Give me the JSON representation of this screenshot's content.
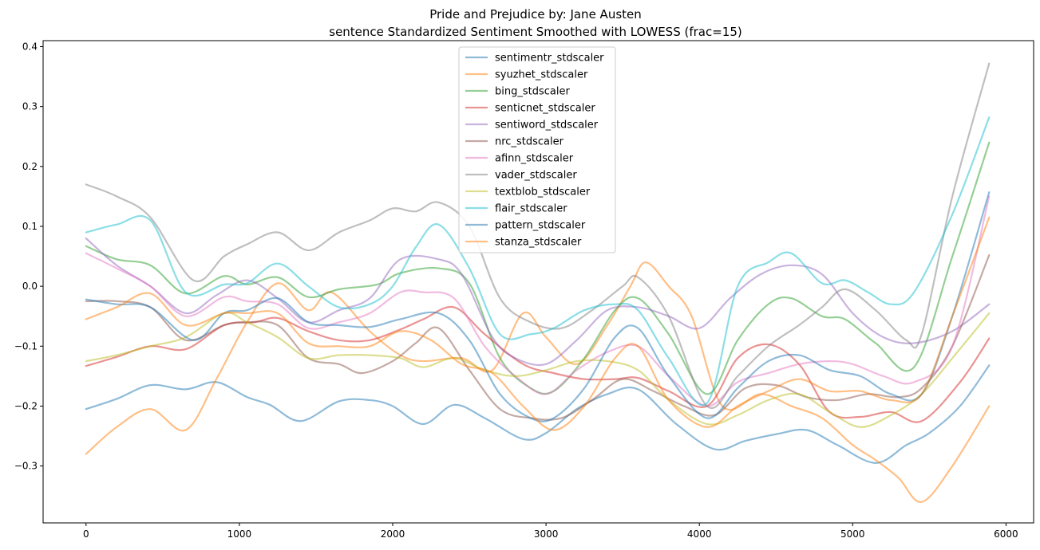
{
  "chart_data": {
    "type": "line",
    "title": "Pride and Prejudice by: Jane Austen",
    "subtitle": "sentence Standardized Sentiment Smoothed with LOWESS (frac=15)",
    "xlabel": "",
    "ylabel": "",
    "xlim": [
      -280,
      6180
    ],
    "ylim": [
      -0.395,
      0.41
    ],
    "xticks": [
      0,
      1000,
      2000,
      3000,
      4000,
      5000,
      6000
    ],
    "yticks": [
      -0.3,
      -0.2,
      -0.1,
      0.0,
      0.1,
      0.2,
      0.3,
      0.4
    ],
    "ytick_labels": [
      "−0.3",
      "−0.2",
      "−0.1",
      "0.0",
      "0.1",
      "0.2",
      "0.3",
      "0.4"
    ],
    "xtick_labels": [
      "0",
      "1000",
      "2000",
      "3000",
      "4000",
      "5000",
      "6000"
    ],
    "grid": false,
    "legend_position": "top-center",
    "series": [
      {
        "name": "sentimentr_stdscaler",
        "color": "#1f77b4",
        "x": [
          0,
          200,
          420,
          650,
          850,
          1050,
          1200,
          1400,
          1650,
          1850,
          2000,
          2200,
          2400,
          2600,
          2850,
          3000,
          3200,
          3400,
          3600,
          3850,
          4100,
          4300,
          4500,
          4700,
          4900,
          5150,
          5350,
          5500,
          5700,
          5890
        ],
        "y": [
          -0.205,
          -0.188,
          -0.165,
          -0.172,
          -0.16,
          -0.185,
          -0.198,
          -0.225,
          -0.192,
          -0.19,
          -0.2,
          -0.23,
          -0.198,
          -0.22,
          -0.255,
          -0.245,
          -0.205,
          -0.18,
          -0.172,
          -0.23,
          -0.272,
          -0.258,
          -0.247,
          -0.24,
          -0.265,
          -0.295,
          -0.265,
          -0.245,
          -0.2,
          -0.132
        ]
      },
      {
        "name": "syuzhet_stdscaler",
        "color": "#ff7f0e",
        "x": [
          0,
          200,
          420,
          650,
          850,
          1050,
          1250,
          1450,
          1600,
          1850,
          2050,
          2200,
          2450,
          2650,
          2850,
          3000,
          3200,
          3400,
          3550,
          3650,
          3800,
          3950,
          4150,
          4400,
          4600,
          4800,
          5000,
          5150,
          5300,
          5450,
          5650,
          5890
        ],
        "y": [
          -0.28,
          -0.235,
          -0.205,
          -0.24,
          -0.155,
          -0.06,
          0.005,
          -0.04,
          -0.01,
          -0.075,
          -0.115,
          -0.125,
          -0.12,
          -0.14,
          -0.045,
          -0.085,
          -0.13,
          -0.065,
          0.0,
          0.04,
          0.0,
          -0.05,
          -0.2,
          -0.18,
          -0.2,
          -0.22,
          -0.265,
          -0.29,
          -0.32,
          -0.36,
          -0.3,
          -0.2
        ]
      },
      {
        "name": "bing_stdscaler",
        "color": "#2ca02c",
        "x": [
          0,
          200,
          420,
          650,
          900,
          1050,
          1250,
          1450,
          1650,
          1900,
          2050,
          2300,
          2500,
          2700,
          2900,
          3050,
          3250,
          3450,
          3600,
          3800,
          4050,
          4250,
          4450,
          4600,
          4800,
          4950,
          5150,
          5400,
          5650,
          5890
        ],
        "y": [
          0.067,
          0.045,
          0.035,
          -0.012,
          0.017,
          0.003,
          0.015,
          -0.018,
          -0.005,
          0.003,
          0.022,
          0.03,
          0.005,
          -0.12,
          -0.17,
          -0.175,
          -0.12,
          -0.04,
          -0.02,
          -0.08,
          -0.18,
          -0.09,
          -0.03,
          -0.02,
          -0.05,
          -0.055,
          -0.095,
          -0.135,
          0.05,
          0.24
        ]
      },
      {
        "name": "senticnet_stdscaler",
        "color": "#d62728",
        "x": [
          0,
          200,
          420,
          650,
          900,
          1100,
          1250,
          1450,
          1650,
          1850,
          2050,
          2200,
          2400,
          2600,
          2850,
          3050,
          3250,
          3450,
          3600,
          3800,
          4050,
          4250,
          4450,
          4650,
          4850,
          5050,
          5250,
          5450,
          5700,
          5890
        ],
        "y": [
          -0.133,
          -0.118,
          -0.1,
          -0.105,
          -0.065,
          -0.06,
          -0.053,
          -0.075,
          -0.09,
          -0.09,
          -0.072,
          -0.055,
          -0.035,
          -0.08,
          -0.13,
          -0.145,
          -0.155,
          -0.155,
          -0.153,
          -0.175,
          -0.2,
          -0.12,
          -0.097,
          -0.13,
          -0.21,
          -0.218,
          -0.21,
          -0.225,
          -0.16,
          -0.087
        ]
      },
      {
        "name": "sentiword_stdscaler",
        "color": "#9467bd",
        "x": [
          0,
          200,
          420,
          650,
          850,
          1050,
          1250,
          1450,
          1650,
          1850,
          2050,
          2300,
          2450,
          2650,
          2800,
          3000,
          3200,
          3400,
          3600,
          3800,
          4000,
          4200,
          4400,
          4600,
          4800,
          5000,
          5200,
          5400,
          5650,
          5890
        ],
        "y": [
          0.08,
          0.035,
          0.0,
          -0.045,
          -0.015,
          0.01,
          -0.02,
          -0.06,
          -0.04,
          -0.02,
          0.045,
          0.045,
          0.02,
          -0.085,
          -0.12,
          -0.13,
          -0.09,
          -0.04,
          -0.035,
          -0.05,
          -0.07,
          -0.02,
          0.02,
          0.035,
          0.02,
          -0.045,
          -0.085,
          -0.095,
          -0.075,
          -0.03
        ]
      },
      {
        "name": "nrc_stdscaler",
        "color": "#8c564b",
        "x": [
          0,
          200,
          420,
          650,
          900,
          1050,
          1250,
          1450,
          1650,
          1800,
          2000,
          2150,
          2300,
          2500,
          2700,
          2900,
          3100,
          3300,
          3500,
          3700,
          3900,
          4100,
          4300,
          4500,
          4700,
          4900,
          5100,
          5300,
          5450,
          5650,
          5890
        ],
        "y": [
          -0.025,
          -0.025,
          -0.035,
          -0.09,
          -0.065,
          -0.06,
          -0.065,
          -0.12,
          -0.13,
          -0.145,
          -0.125,
          -0.095,
          -0.07,
          -0.14,
          -0.205,
          -0.22,
          -0.22,
          -0.19,
          -0.155,
          -0.175,
          -0.2,
          -0.215,
          -0.17,
          -0.165,
          -0.185,
          -0.19,
          -0.18,
          -0.185,
          -0.17,
          -0.1,
          0.052
        ]
      },
      {
        "name": "afinn_stdscaler",
        "color": "#e377c2",
        "x": [
          0,
          200,
          420,
          650,
          900,
          1050,
          1250,
          1450,
          1650,
          1850,
          2050,
          2200,
          2400,
          2600,
          2800,
          3000,
          3200,
          3400,
          3600,
          3800,
          4050,
          4250,
          4450,
          4650,
          4850,
          5000,
          5200,
          5400,
          5650,
          5890
        ],
        "y": [
          0.055,
          0.03,
          0.0,
          -0.05,
          -0.018,
          -0.025,
          -0.03,
          -0.07,
          -0.06,
          -0.045,
          -0.01,
          -0.01,
          -0.02,
          -0.1,
          -0.15,
          -0.18,
          -0.14,
          -0.11,
          -0.1,
          -0.15,
          -0.2,
          -0.16,
          -0.145,
          -0.13,
          -0.125,
          -0.13,
          -0.15,
          -0.16,
          -0.1,
          0.15
        ]
      },
      {
        "name": "vader_stdscaler",
        "color": "#7f7f7f",
        "x": [
          0,
          200,
          420,
          700,
          900,
          1050,
          1250,
          1450,
          1650,
          1850,
          2000,
          2150,
          2300,
          2500,
          2700,
          2900,
          3100,
          3300,
          3500,
          3600,
          3800,
          4050,
          4250,
          4450,
          4650,
          4800,
          4950,
          5150,
          5350,
          5450,
          5650,
          5890
        ],
        "y": [
          0.17,
          0.15,
          0.115,
          0.01,
          0.05,
          0.07,
          0.09,
          0.06,
          0.09,
          0.11,
          0.13,
          0.125,
          0.14,
          0.1,
          -0.02,
          -0.06,
          -0.07,
          -0.04,
          0.0,
          0.015,
          -0.05,
          -0.2,
          -0.15,
          -0.1,
          -0.065,
          -0.035,
          -0.005,
          -0.04,
          -0.09,
          -0.08,
          0.15,
          0.372
        ]
      },
      {
        "name": "textblob_stdscaler",
        "color": "#bcbd22",
        "x": [
          0,
          200,
          420,
          650,
          900,
          1050,
          1250,
          1450,
          1650,
          1850,
          2050,
          2200,
          2400,
          2600,
          2800,
          3000,
          3200,
          3400,
          3600,
          3800,
          4050,
          4250,
          4450,
          4650,
          4850,
          5050,
          5250,
          5450,
          5650,
          5890
        ],
        "y": [
          -0.125,
          -0.115,
          -0.1,
          -0.085,
          -0.045,
          -0.06,
          -0.085,
          -0.12,
          -0.115,
          -0.115,
          -0.12,
          -0.135,
          -0.12,
          -0.14,
          -0.15,
          -0.14,
          -0.125,
          -0.125,
          -0.14,
          -0.19,
          -0.23,
          -0.215,
          -0.19,
          -0.18,
          -0.21,
          -0.235,
          -0.215,
          -0.18,
          -0.12,
          -0.045
        ]
      },
      {
        "name": "flair_stdscaler",
        "color": "#17becf",
        "x": [
          0,
          200,
          420,
          650,
          900,
          1050,
          1250,
          1450,
          1650,
          1850,
          2000,
          2150,
          2300,
          2500,
          2700,
          2900,
          3050,
          3250,
          3450,
          3600,
          3800,
          4050,
          4250,
          4450,
          4600,
          4800,
          4950,
          5100,
          5250,
          5400,
          5650,
          5890
        ],
        "y": [
          0.09,
          0.103,
          0.11,
          -0.01,
          0.003,
          0.005,
          0.038,
          0.0,
          -0.035,
          -0.03,
          0.0,
          0.065,
          0.103,
          0.03,
          -0.08,
          -0.08,
          -0.07,
          -0.04,
          -0.03,
          -0.04,
          -0.12,
          -0.195,
          0.0,
          0.04,
          0.055,
          0.005,
          0.01,
          -0.01,
          -0.03,
          -0.01,
          0.12,
          0.282
        ]
      },
      {
        "name": "pattern_stdscaler",
        "color": "#1f77b4",
        "x": [
          0,
          200,
          420,
          700,
          900,
          1050,
          1250,
          1450,
          1650,
          1850,
          2050,
          2300,
          2500,
          2700,
          2900,
          3050,
          3250,
          3450,
          3600,
          3800,
          4050,
          4250,
          4450,
          4650,
          4850,
          5050,
          5250,
          5450,
          5650,
          5890
        ],
        "y": [
          -0.022,
          -0.03,
          -0.035,
          -0.09,
          -0.045,
          -0.04,
          -0.02,
          -0.06,
          -0.065,
          -0.068,
          -0.055,
          -0.045,
          -0.09,
          -0.18,
          -0.22,
          -0.22,
          -0.17,
          -0.085,
          -0.07,
          -0.15,
          -0.22,
          -0.17,
          -0.125,
          -0.115,
          -0.14,
          -0.15,
          -0.18,
          -0.18,
          -0.05,
          0.157
        ]
      },
      {
        "name": "stanza_stdscaler",
        "color": "#ff7f0e",
        "x": [
          0,
          200,
          420,
          650,
          900,
          1050,
          1250,
          1450,
          1650,
          1850,
          2050,
          2250,
          2450,
          2650,
          2850,
          3050,
          3250,
          3450,
          3600,
          3800,
          4050,
          4250,
          4450,
          4650,
          4850,
          5050,
          5250,
          5450,
          5650,
          5890
        ],
        "y": [
          -0.055,
          -0.035,
          -0.012,
          -0.065,
          -0.045,
          -0.045,
          -0.045,
          -0.095,
          -0.1,
          -0.1,
          -0.075,
          -0.09,
          -0.13,
          -0.145,
          -0.2,
          -0.24,
          -0.2,
          -0.12,
          -0.1,
          -0.19,
          -0.235,
          -0.2,
          -0.175,
          -0.155,
          -0.175,
          -0.175,
          -0.19,
          -0.18,
          -0.05,
          0.115
        ]
      }
    ]
  }
}
